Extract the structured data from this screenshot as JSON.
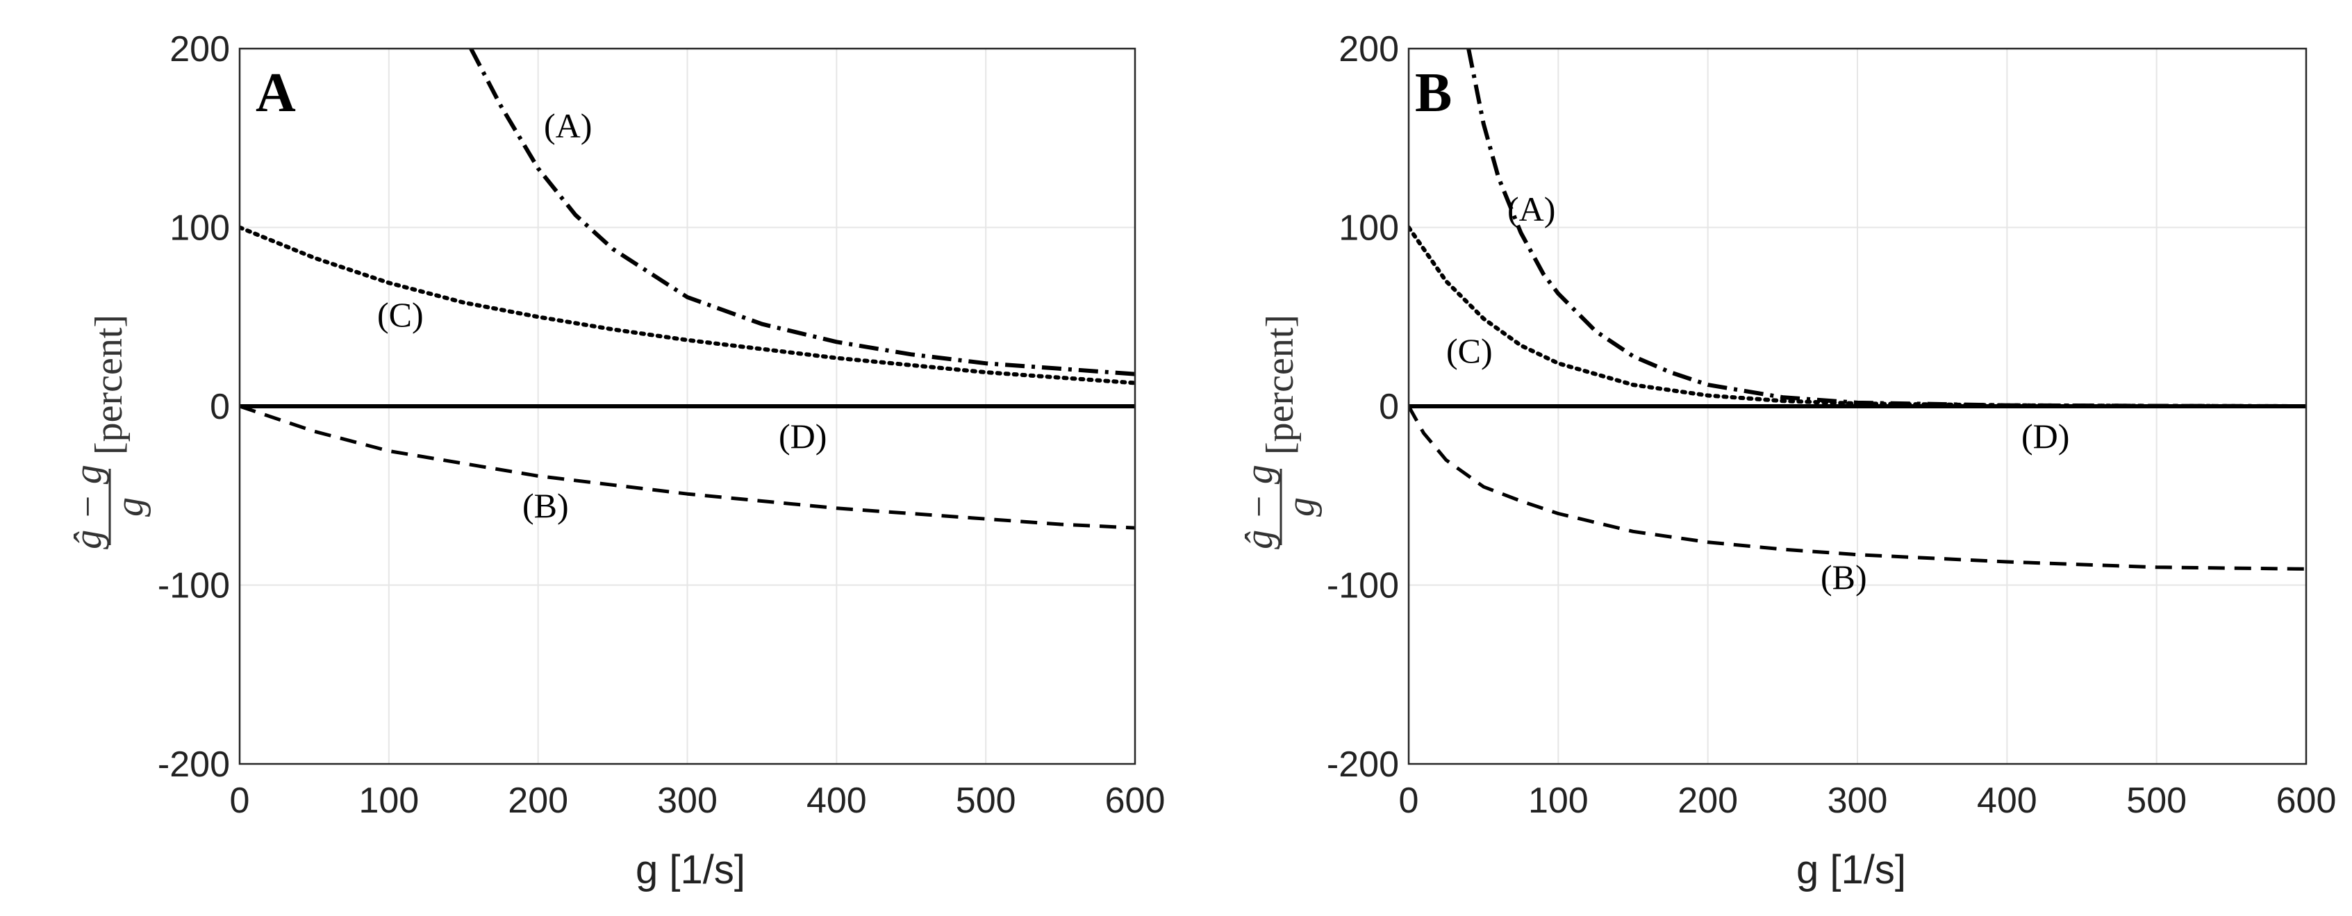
{
  "chart_data": [
    {
      "type": "line",
      "panel": "A",
      "xlabel": "g [1/s]",
      "ylabel": {
        "numerator": "ĝ − g",
        "denominator": "g",
        "unit": "[percent]"
      },
      "xlim": [
        0,
        600
      ],
      "ylim": [
        -200,
        200
      ],
      "xticks": [
        0,
        100,
        200,
        300,
        400,
        500,
        600
      ],
      "yticks": [
        -200,
        -100,
        0,
        100,
        200
      ],
      "grid": true,
      "series": [
        {
          "name": "A",
          "label": "(A)",
          "style": "dashdot",
          "x": [
            155,
            175,
            200,
            225,
            250,
            300,
            350,
            400,
            450,
            500,
            550,
            600
          ],
          "y": [
            200,
            168,
            133,
            107,
            88,
            61,
            46,
            36,
            29,
            24,
            21,
            18
          ]
        },
        {
          "name": "B",
          "label": "(B)",
          "style": "dashed",
          "x": [
            0,
            50,
            100,
            150,
            200,
            250,
            300,
            350,
            400,
            450,
            500,
            550,
            600
          ],
          "y": [
            0,
            -14,
            -25,
            -32,
            -39,
            -44,
            -49,
            -53,
            -57,
            -60,
            -63,
            -66,
            -68
          ]
        },
        {
          "name": "C",
          "label": "(C)",
          "style": "dotted",
          "x": [
            0,
            50,
            100,
            150,
            200,
            250,
            300,
            350,
            400,
            450,
            500,
            550,
            600
          ],
          "y": [
            100,
            83,
            69,
            58,
            50,
            43,
            37,
            32,
            27,
            23,
            19,
            16,
            13
          ]
        },
        {
          "name": "D",
          "label": "(D)",
          "style": "solid",
          "x": [
            0,
            600
          ],
          "y": [
            0,
            0
          ]
        }
      ]
    },
    {
      "type": "line",
      "panel": "B",
      "xlabel": "g [1/s]",
      "ylabel": {
        "numerator": "ĝ − g",
        "denominator": "g",
        "unit": "[percent]"
      },
      "xlim": [
        0,
        600
      ],
      "ylim": [
        -200,
        200
      ],
      "xticks": [
        0,
        100,
        200,
        300,
        400,
        500,
        600
      ],
      "yticks": [
        -200,
        -100,
        0,
        100,
        200
      ],
      "grid": true,
      "series": [
        {
          "name": "A",
          "label": "(A)",
          "style": "dashdot",
          "x": [
            40,
            50,
            60,
            75,
            90,
            100,
            125,
            150,
            175,
            200,
            250,
            300,
            400,
            500,
            600
          ],
          "y": [
            200,
            158,
            128,
            97,
            74,
            63,
            42,
            28,
            19,
            12,
            5,
            2,
            0.5,
            0.2,
            0
          ]
        },
        {
          "name": "B",
          "label": "(B)",
          "style": "dashed",
          "x": [
            0,
            10,
            25,
            50,
            75,
            100,
            150,
            200,
            250,
            300,
            400,
            500,
            600
          ],
          "y": [
            0,
            -15,
            -30,
            -45,
            -53,
            -60,
            -70,
            -76,
            -80,
            -83,
            -87,
            -90,
            -91
          ]
        },
        {
          "name": "C",
          "label": "(C)",
          "style": "dotted",
          "x": [
            0,
            25,
            50,
            75,
            100,
            150,
            200,
            250,
            300,
            400,
            500,
            600
          ],
          "y": [
            100,
            70,
            49,
            34,
            24,
            12,
            6,
            3,
            1.5,
            0.5,
            0.2,
            0
          ]
        },
        {
          "name": "D",
          "label": "(D)",
          "style": "solid",
          "x": [
            0,
            600
          ],
          "y": [
            0,
            0
          ]
        }
      ]
    }
  ]
}
